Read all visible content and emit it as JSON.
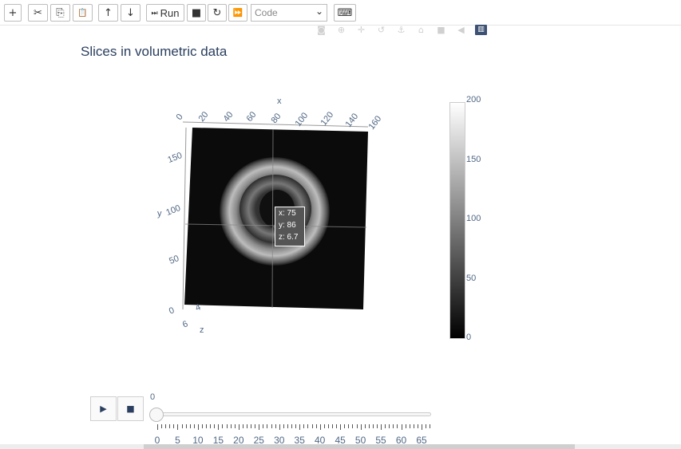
{
  "toolbar": {
    "buttons": [
      {
        "name": "insert-cell-button",
        "icon": "plus-icon",
        "glyph": "+"
      },
      {
        "name": "cut-button",
        "icon": "scissors-icon",
        "glyph": "✂"
      },
      {
        "name": "copy-button",
        "icon": "copy-icon",
        "glyph": "⎘"
      },
      {
        "name": "paste-button",
        "icon": "paste-icon",
        "glyph": "📋"
      },
      {
        "name": "move-up-button",
        "icon": "arrow-up-icon",
        "glyph": "↑"
      },
      {
        "name": "move-down-button",
        "icon": "arrow-down-icon",
        "glyph": "↓"
      },
      {
        "name": "run-button",
        "icon": "step-icon",
        "glyph": "⏭"
      },
      {
        "name": "interrupt-button",
        "icon": "stop-icon",
        "glyph": "■"
      },
      {
        "name": "restart-button",
        "icon": "restart-icon",
        "glyph": "↻"
      },
      {
        "name": "restart-run-all-button",
        "icon": "fast-forward-icon",
        "glyph": "⏩"
      },
      {
        "name": "command-palette-button",
        "icon": "keyboard-icon",
        "glyph": "⌨"
      }
    ],
    "run_label": "Run",
    "cell_type": "Code"
  },
  "modebar": [
    "camera-icon",
    "zoom-icon",
    "pan-icon",
    "orbit-icon",
    "turntable-icon",
    "home-icon",
    "camera-view-icon",
    "hover-toggle-icon",
    "plotly-logo-icon"
  ],
  "plot": {
    "title": "Slices in volumetric data",
    "x_label": "x",
    "y_label": "y",
    "z_label": "z",
    "x_ticks": [
      "0",
      "20",
      "40",
      "60",
      "80",
      "100",
      "120",
      "140",
      "160"
    ],
    "y_ticks": [
      "150",
      "100",
      "50",
      "0"
    ],
    "z_ticks": [
      "4",
      "6"
    ],
    "hover": {
      "x": "x: 75",
      "y": "y: 86",
      "z": "z: 6.7"
    },
    "colorbar": {
      "ticks": [
        "200",
        "150",
        "100",
        "50",
        "0"
      ],
      "min": 0,
      "max": 200,
      "top_color": "#ffffff",
      "bottom_color": "#000000"
    }
  },
  "animation": {
    "play_glyph": "▶",
    "stop_glyph": "■",
    "current_value": "0",
    "ticks": [
      "0",
      "5",
      "10",
      "15",
      "20",
      "25",
      "30",
      "35",
      "40",
      "45",
      "50",
      "55",
      "60",
      "65"
    ],
    "value_fraction": 0
  }
}
